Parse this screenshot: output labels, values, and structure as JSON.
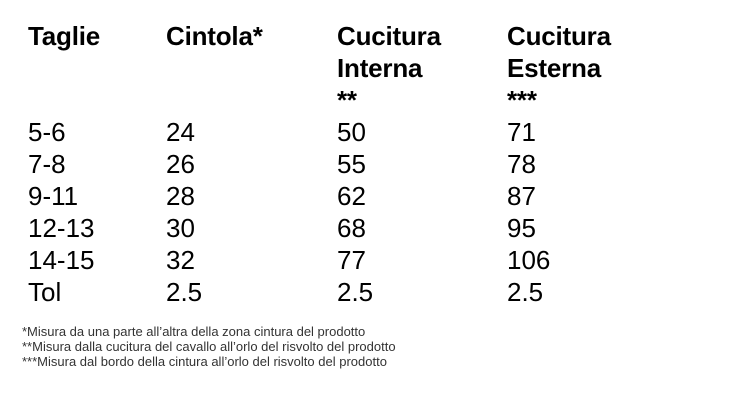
{
  "table": {
    "headers": [
      "Taglie",
      "Cintola*",
      "Cucitura\nInterna\n**",
      "Cucitura\nEsterna\n***"
    ],
    "rows": [
      [
        "5-6",
        "24",
        "50",
        "71"
      ],
      [
        "7-8",
        "26",
        "55",
        "78"
      ],
      [
        "9-11",
        "28",
        "62",
        "87"
      ],
      [
        "12-13",
        "30",
        "68",
        "95"
      ],
      [
        "14-15",
        "32",
        "77",
        "106"
      ],
      [
        "Tol",
        "2.5",
        "2.5",
        "2.5"
      ]
    ]
  },
  "footnotes": [
    "*Misura da una parte all’altra della zona cintura del prodotto",
    "**Misura dalla cucitura del cavallo all’orlo del risvolto del prodotto",
    "***Misura dal bordo della cintura all’orlo del risvolto del prodotto"
  ],
  "colors": {
    "text": "#000000",
    "footnote": "#333333",
    "background": "#ffffff"
  }
}
